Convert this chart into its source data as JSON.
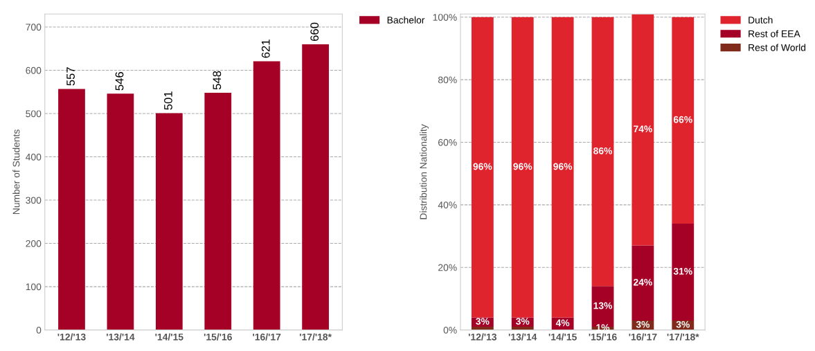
{
  "chart_data": [
    {
      "type": "bar",
      "ylabel": "Number of Students",
      "categories": [
        "'12/'13",
        "'13/'14",
        "'14/'15",
        "'15/'16",
        "'16/'17",
        "'17/'18*"
      ],
      "series": [
        {
          "name": "Bachelor",
          "color": "#a50026",
          "values": [
            557,
            546,
            501,
            548,
            621,
            660
          ]
        }
      ],
      "ylim": [
        0,
        730
      ],
      "yticks": [
        0,
        100,
        200,
        300,
        400,
        500,
        600,
        700
      ],
      "grid": "y",
      "legend": "top right",
      "data_labels": true
    },
    {
      "type": "bar",
      "stacked": true,
      "ylabel": "Distribution Nationality",
      "categories": [
        "'12/'13",
        "'13/'14",
        "'14/'15",
        "'15/'16",
        "'16/'17",
        "'17/'18*"
      ],
      "series": [
        {
          "name": "Rest of World",
          "color": "#7f2a1a",
          "values": [
            1,
            1,
            0,
            1,
            3,
            3
          ],
          "value_labels": [
            null,
            null,
            null,
            "1%",
            "3%",
            "3%"
          ]
        },
        {
          "name": "Rest of EEA",
          "color": "#a50026",
          "values": [
            3,
            3,
            4,
            13,
            24,
            31
          ],
          "value_labels": [
            "3%",
            "3%",
            "4%",
            "13%",
            "24%",
            "31%"
          ]
        },
        {
          "name": "Dutch",
          "color": "#e0242e",
          "values": [
            96,
            96,
            96,
            86,
            74,
            66
          ],
          "value_labels": [
            "96%",
            "96%",
            "96%",
            "86%",
            "74%",
            "66%"
          ]
        }
      ],
      "ylim": [
        0,
        101
      ],
      "yticks": [
        {
          "value": 0,
          "label": "0%"
        },
        {
          "value": 20,
          "label": "20%"
        },
        {
          "value": 40,
          "label": "40%"
        },
        {
          "value": 60,
          "label": "60%"
        },
        {
          "value": 80,
          "label": "80%"
        },
        {
          "value": 100,
          "label": "100%"
        }
      ],
      "grid": "y",
      "legend": "top right"
    }
  ]
}
